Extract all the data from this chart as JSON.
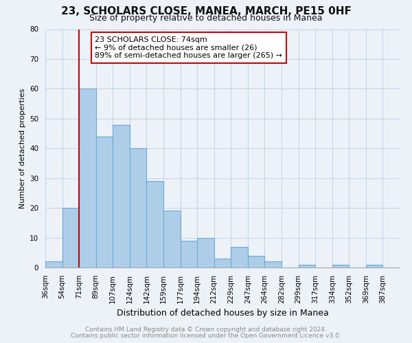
{
  "title": "23, SCHOLARS CLOSE, MANEA, MARCH, PE15 0HF",
  "subtitle": "Size of property relative to detached houses in Manea",
  "xlabel": "Distribution of detached houses by size in Manea",
  "ylabel": "Number of detached properties",
  "footer_line1": "Contains HM Land Registry data © Crown copyright and database right 2024.",
  "footer_line2": "Contains public sector information licensed under the Open Government Licence v3.0.",
  "bin_labels": [
    "36sqm",
    "54sqm",
    "71sqm",
    "89sqm",
    "107sqm",
    "124sqm",
    "142sqm",
    "159sqm",
    "177sqm",
    "194sqm",
    "212sqm",
    "229sqm",
    "247sqm",
    "264sqm",
    "282sqm",
    "299sqm",
    "317sqm",
    "334sqm",
    "352sqm",
    "369sqm",
    "387sqm"
  ],
  "bin_values": [
    2,
    20,
    60,
    44,
    48,
    40,
    29,
    19,
    9,
    10,
    3,
    7,
    4,
    2,
    0,
    1,
    0,
    1,
    0,
    1,
    0
  ],
  "bar_color": "#aecde8",
  "bar_edge_color": "#6aaad4",
  "highlight_line_color": "#cc0000",
  "highlight_bin_index": 2,
  "annotation_text": "23 SCHOLARS CLOSE: 74sqm\n← 9% of detached houses are smaller (26)\n89% of semi-detached houses are larger (265) →",
  "annotation_box_facecolor": "#ffffff",
  "annotation_box_edgecolor": "#cc0000",
  "ylim": [
    0,
    80
  ],
  "yticks": [
    0,
    10,
    20,
    30,
    40,
    50,
    60,
    70,
    80
  ],
  "grid_color": "#c8d4e8",
  "background_color": "#edf2f9",
  "title_fontsize": 11,
  "subtitle_fontsize": 9,
  "ylabel_fontsize": 8,
  "xlabel_fontsize": 9,
  "tick_fontsize": 7.5,
  "footer_color": "#888888",
  "footer_fontsize": 6.5
}
